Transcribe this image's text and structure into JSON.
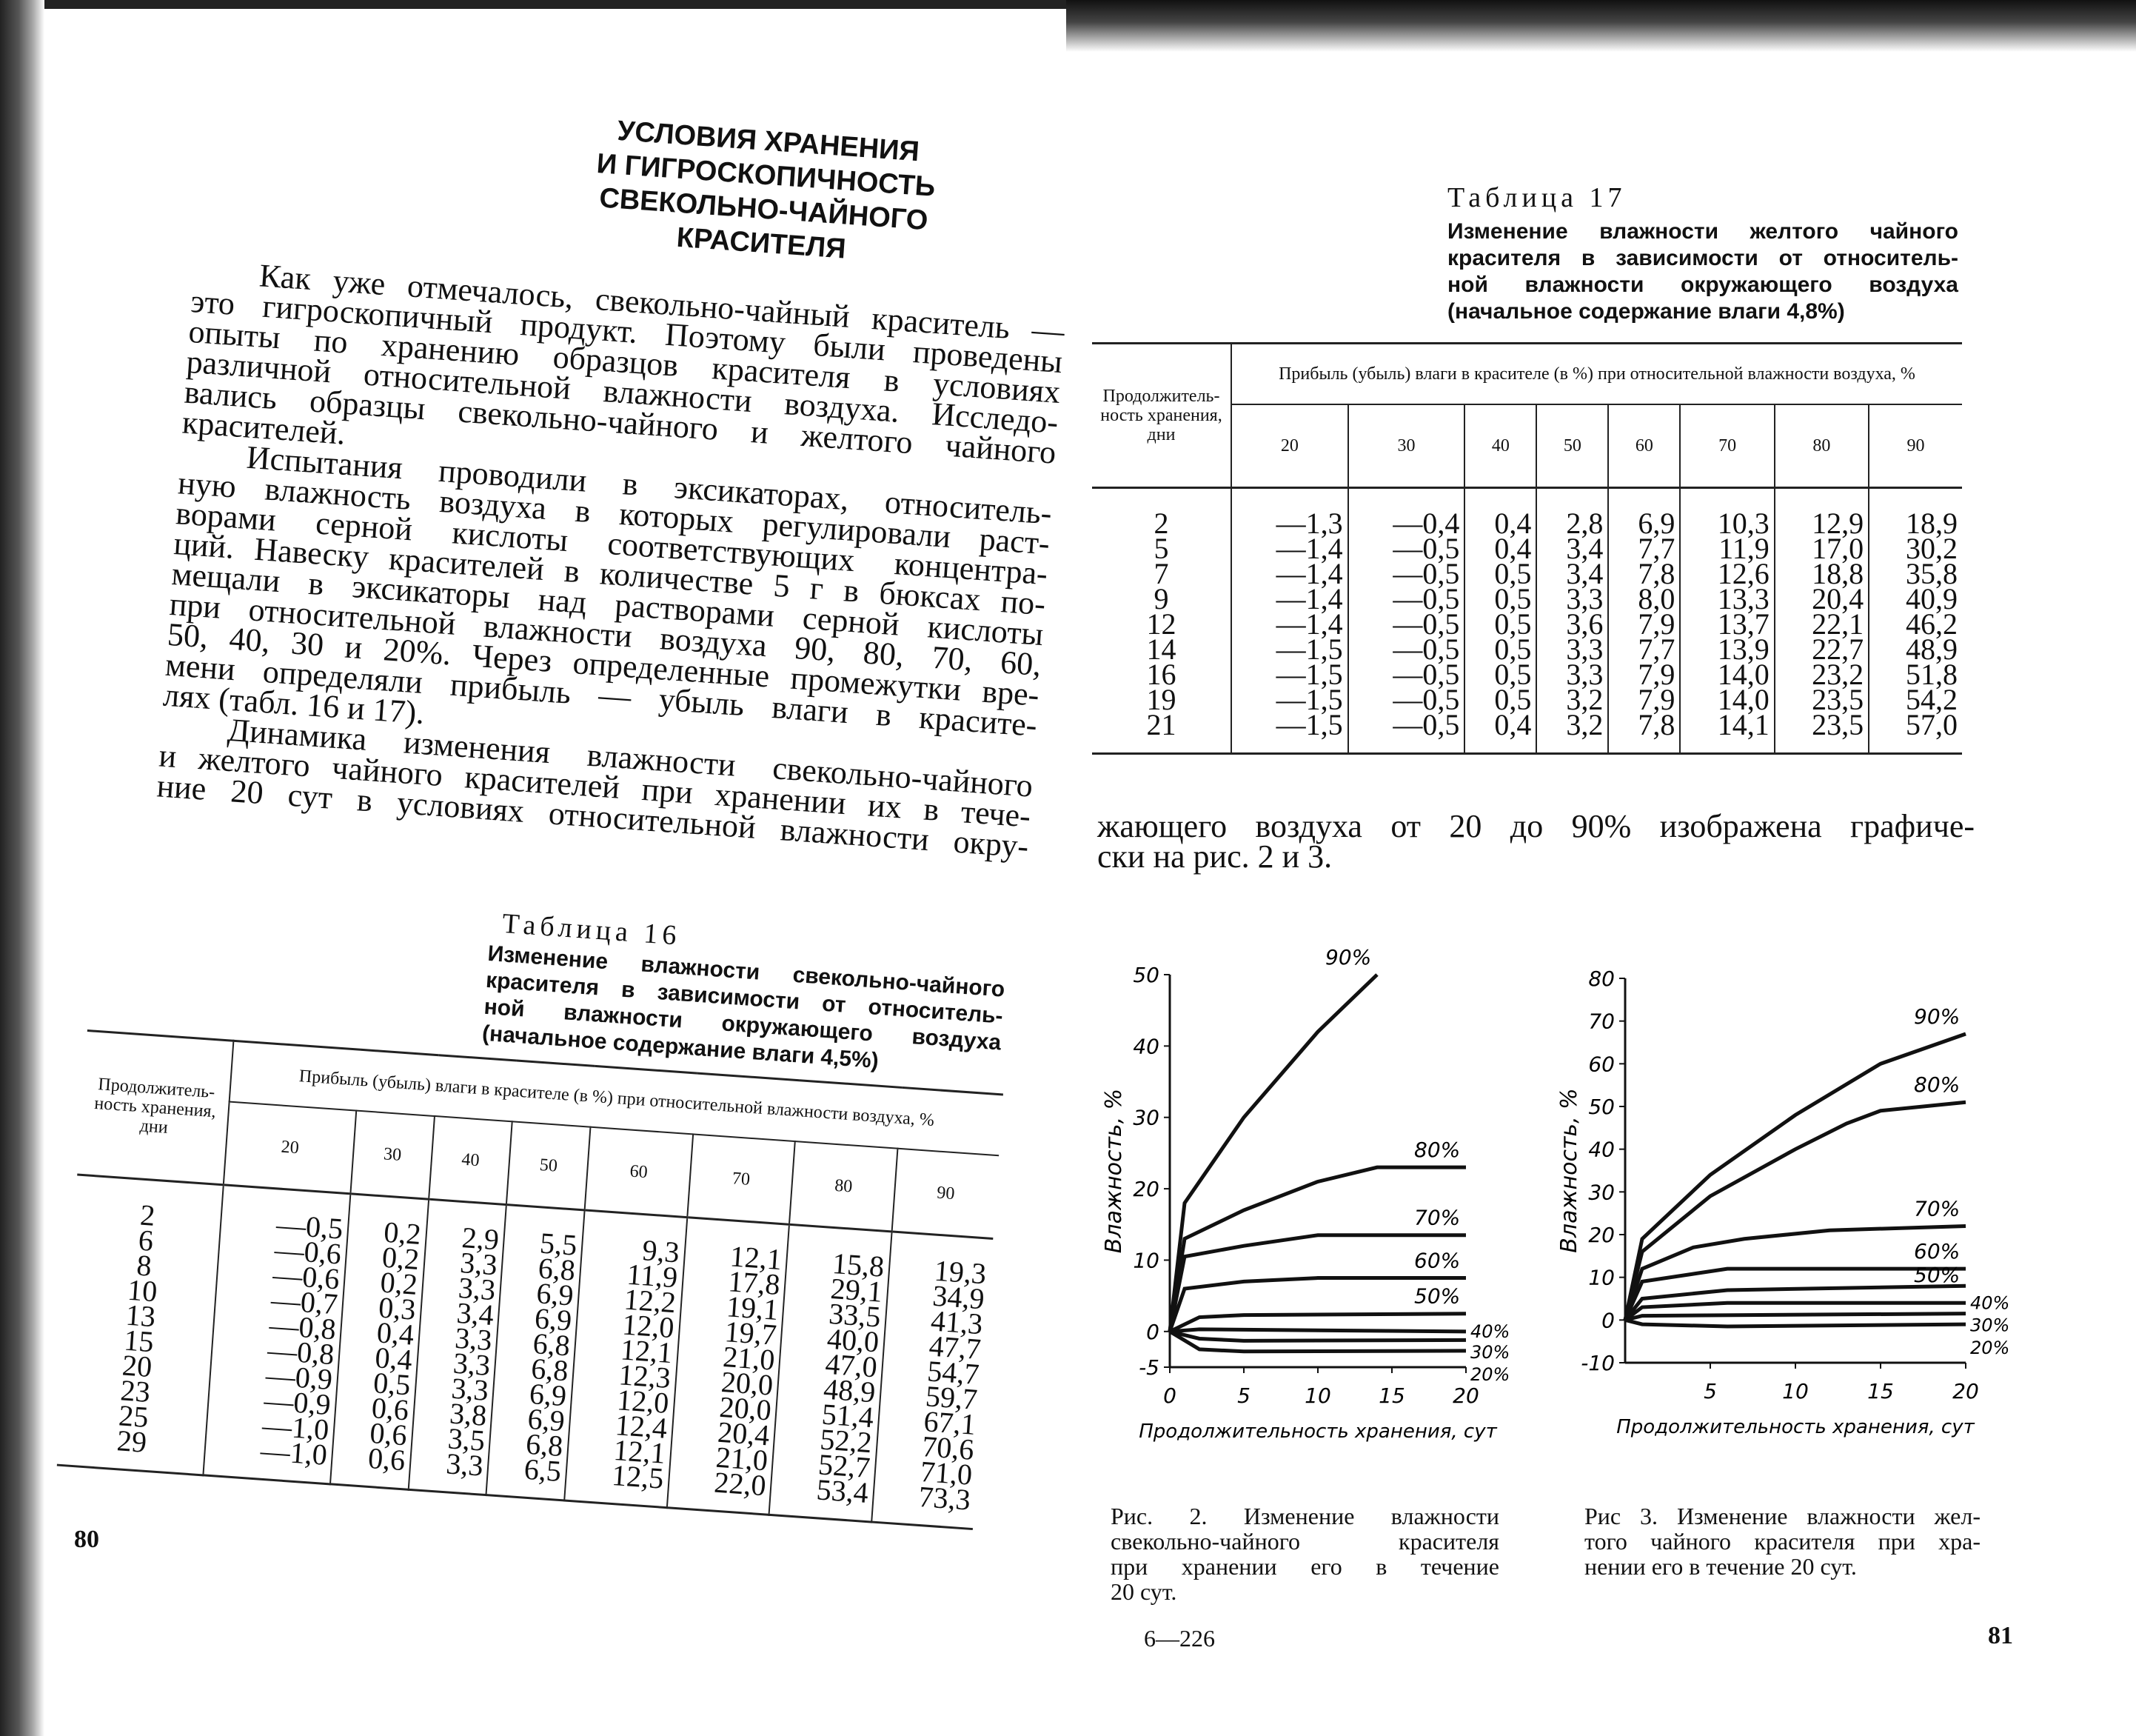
{
  "left_page": {
    "heading": [
      "УСЛОВИЯ ХРАНЕНИЯ",
      "И ГИГРОСКОПИЧНОСТЬ",
      "СВЕКОЛЬНО-ЧАЙНОГО",
      "КРАСИТЕЛЯ"
    ],
    "paragraphs": [
      [
        "Как уже отмечалось, свекольно-чайный краситель —",
        "это гигроскопичный продукт. Поэтому были проведены",
        "опыты по хранению образцов красителя в условиях",
        "различной относительной влажности воздуха. Исследо-",
        "вались образцы свекольно-чайного и желтого чайного",
        "красителей."
      ],
      [
        "Испытания проводили в эксикаторах, относитель-",
        "ную влажность воздуха в которых регулировали раст-",
        "ворами серной кислоты соответствующих концентра-",
        "ций. Навеску красителей в количестве 5 г в бюксах по-",
        "мещали в эксикаторы над растворами серной кислоты",
        "при относительной влажности воздуха 90, 80, 70, 60,",
        "50, 40, 30 и 20%. Через определенные промежутки вре-",
        "мени определяли прибыль — убыль влаги в красите-",
        "лях (табл. 16 и 17)."
      ],
      [
        "Динамика изменения влажности свекольно-чайного",
        "и желтого чайного красителей при хранении их в тече-",
        "ние 20 сут в условиях относительной влажности окру-"
      ]
    ],
    "table16": {
      "label": "Таблица 16",
      "title_lines": [
        "Изменение влажности свекольно-чайного",
        "красителя в зависимости от относитель-",
        "ной влажности окружающего воздуха",
        "(начальное содержание влаги 4,5%)"
      ],
      "header_duration": "Продолжитель-ность хранения, дни",
      "header_group": "Прибыль (убыль) влаги в красителе (в %) при относительной влажности воздуха, %",
      "columns": [
        "20",
        "30",
        "40",
        "50",
        "60",
        "70",
        "80",
        "90"
      ],
      "days": [
        "2",
        "6",
        "8",
        "10",
        "13",
        "15",
        "20",
        "23",
        "25",
        "29"
      ],
      "values": [
        [
          "—0,5",
          "—0,6",
          "—0,6",
          "—0,7",
          "—0,8",
          "—0,8",
          "—0,9",
          "—0,9",
          "—1,0",
          "—1,0"
        ],
        [
          "0,2",
          "0,2",
          "0,2",
          "0,3",
          "0,4",
          "0,4",
          "0,5",
          "0,6",
          "0,6",
          "0,6"
        ],
        [
          "2,9",
          "3,3",
          "3,3",
          "3,4",
          "3,3",
          "3,3",
          "3,3",
          "3,8",
          "3,5",
          "3,3"
        ],
        [
          "5,5",
          "6,8",
          "6,9",
          "6,9",
          "6,8",
          "6,8",
          "6,9",
          "6,9",
          "6,8",
          "6,5"
        ],
        [
          "9,3",
          "11,9",
          "12,2",
          "12,0",
          "12,1",
          "12,3",
          "12,0",
          "12,4",
          "12,1",
          "12,5"
        ],
        [
          "12,1",
          "17,8",
          "19,1",
          "19,7",
          "21,0",
          "20,0",
          "20,0",
          "20,4",
          "21,0",
          "22,0"
        ],
        [
          "15,8",
          "29,1",
          "33,5",
          "40,0",
          "47,0",
          "48,9",
          "51,4",
          "52,2",
          "52,7",
          "53,4"
        ],
        [
          "19,3",
          "34,9",
          "41,3",
          "47,7",
          "54,7",
          "59,7",
          "67,1",
          "70,6",
          "71,0",
          "73,3"
        ]
      ]
    },
    "page_number": "80"
  },
  "right_page": {
    "table17": {
      "label": "Таблица 17",
      "title_lines": [
        "Изменение влажности желтого чайного",
        "красителя в зависимости от относитель-",
        "ной влажности окружающего воздуха",
        "(начальное содержание влаги 4,8%)"
      ],
      "header_duration": "Продолжитель-ность хранения, дни",
      "header_group": "Прибыль (убыль) влаги в красителе (в %) при относительной влажности воздуха, %",
      "columns": [
        "20",
        "30",
        "40",
        "50",
        "60",
        "70",
        "80",
        "90"
      ],
      "days": [
        "2",
        "5",
        "7",
        "9",
        "12",
        "14",
        "16",
        "19",
        "21"
      ],
      "values": [
        [
          "—1,3",
          "—1,4",
          "—1,4",
          "—1,4",
          "—1,4",
          "—1,5",
          "—1,5",
          "—1,5",
          "—1,5"
        ],
        [
          "—0,4",
          "—0,5",
          "—0,5",
          "—0,5",
          "—0,5",
          "—0,5",
          "—0,5",
          "—0,5",
          "—0,5"
        ],
        [
          "0,4",
          "0,4",
          "0,5",
          "0,5",
          "0,5",
          "0,5",
          "0,5",
          "0,5",
          "0,4"
        ],
        [
          "2,8",
          "3,4",
          "3,4",
          "3,3",
          "3,6",
          "3,3",
          "3,3",
          "3,2",
          "3,2"
        ],
        [
          "6,9",
          "7,7",
          "7,8",
          "8,0",
          "7,9",
          "7,7",
          "7,9",
          "7,9",
          "7,8"
        ],
        [
          "10,3",
          "11,9",
          "12,6",
          "13,3",
          "13,7",
          "13,9",
          "14,0",
          "14,0",
          "14,1"
        ],
        [
          "12,9",
          "17,0",
          "18,8",
          "20,4",
          "22,1",
          "22,7",
          "23,2",
          "23,5",
          "23,5"
        ],
        [
          "18,9",
          "30,2",
          "35,8",
          "40,9",
          "46,2",
          "48,9",
          "51,8",
          "54,2",
          "57,0"
        ]
      ]
    },
    "text_lines": [
      "жающего воздуха от 20 до 90% изображена графиче-",
      "ски на рис. 2 и 3."
    ],
    "fig2_caption": [
      "Рис. 2. Изменение влажности",
      "свекольно-чайного красителя",
      "при хранении его в течение",
      "20 сут."
    ],
    "fig3_caption": [
      "Рис 3. Изменение влажности жел-",
      "того чайного красителя при хра-",
      "нении его в течение 20 сут."
    ],
    "signature": "6—226",
    "page_number": "81"
  },
  "chart_data": [
    {
      "type": "line",
      "xlabel": "Продолжительность хранения, сут",
      "ylabel": "Влажность, %",
      "xlim": [
        0,
        20
      ],
      "ylim": [
        -5,
        50
      ],
      "xticks": [
        "0",
        "5",
        "10",
        "15",
        "20"
      ],
      "yticks": [
        "-5",
        "0",
        "10",
        "20",
        "30",
        "40",
        "50"
      ],
      "grid": false,
      "series": [
        {
          "name": "90%",
          "x": [
            0,
            1,
            5,
            10,
            14
          ],
          "y": [
            0,
            18,
            30,
            42,
            50
          ]
        },
        {
          "name": "80%",
          "x": [
            0,
            1,
            5,
            10,
            14,
            20
          ],
          "y": [
            0,
            13,
            17,
            21,
            23,
            23
          ]
        },
        {
          "name": "70%",
          "x": [
            0,
            1,
            5,
            10,
            20
          ],
          "y": [
            0,
            10.5,
            12,
            13.5,
            13.5
          ]
        },
        {
          "name": "60%",
          "x": [
            0,
            1,
            5,
            10,
            20
          ],
          "y": [
            0,
            6,
            7,
            7.5,
            7.5
          ]
        },
        {
          "name": "50%",
          "x": [
            0,
            2,
            5,
            20
          ],
          "y": [
            0,
            2,
            2.3,
            2.5
          ]
        },
        {
          "name": "40%",
          "x": [
            0,
            2,
            20
          ],
          "y": [
            0,
            0.3,
            0
          ]
        },
        {
          "name": "30%",
          "x": [
            0,
            2,
            5,
            20
          ],
          "y": [
            0,
            -1,
            -1.3,
            -1.2
          ]
        },
        {
          "name": "20%",
          "x": [
            0,
            2,
            5,
            20
          ],
          "y": [
            0,
            -2.5,
            -2.8,
            -2.7
          ]
        }
      ]
    },
    {
      "type": "line",
      "xlabel": "Продолжительность хранения, сут",
      "ylabel": "Влажность, %",
      "xlim": [
        0,
        20
      ],
      "ylim": [
        -10,
        80
      ],
      "xticks": [
        "5",
        "10",
        "15",
        "20"
      ],
      "yticks": [
        "-10",
        "0",
        "10",
        "20",
        "30",
        "40",
        "50",
        "60",
        "70",
        "80"
      ],
      "grid": false,
      "series": [
        {
          "name": "90%",
          "x": [
            0,
            1,
            5,
            10,
            15,
            20
          ],
          "y": [
            0,
            19,
            34,
            48,
            60,
            67
          ]
        },
        {
          "name": "80%",
          "x": [
            0,
            1,
            5,
            10,
            13,
            15,
            20
          ],
          "y": [
            0,
            16,
            29,
            40,
            46,
            49,
            51
          ]
        },
        {
          "name": "70%",
          "x": [
            0,
            1,
            4,
            7,
            12,
            20
          ],
          "y": [
            0,
            12,
            17,
            19,
            21,
            22
          ]
        },
        {
          "name": "60%",
          "x": [
            0,
            1,
            6,
            20
          ],
          "y": [
            0,
            9,
            12,
            12
          ]
        },
        {
          "name": "50%",
          "x": [
            0,
            1,
            6,
            20
          ],
          "y": [
            0,
            5,
            7,
            8
          ]
        },
        {
          "name": "40%",
          "x": [
            0,
            1,
            6,
            20
          ],
          "y": [
            0,
            3,
            4,
            4
          ]
        },
        {
          "name": "30%",
          "x": [
            0,
            1,
            20
          ],
          "y": [
            0,
            1,
            1.5
          ]
        },
        {
          "name": "20%",
          "x": [
            0,
            1,
            6,
            20
          ],
          "y": [
            0,
            -1,
            -1.5,
            -1
          ]
        }
      ]
    }
  ]
}
